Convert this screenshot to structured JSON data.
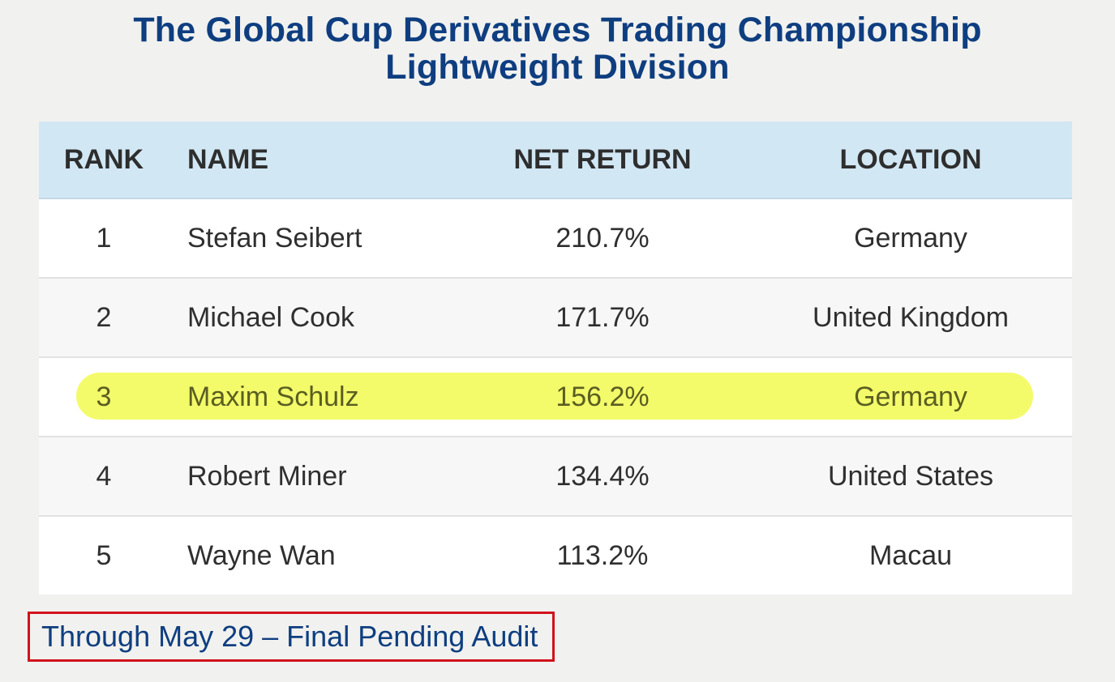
{
  "title": {
    "line1": "The Global Cup Derivatives Trading Championship",
    "line2": "Lightweight Division"
  },
  "table": {
    "headers": {
      "rank": "RANK",
      "name": "NAME",
      "net_return": "NET RETURN",
      "location": "LOCATION"
    },
    "rows": [
      {
        "rank": "1",
        "name": "Stefan Seibert",
        "net_return": "210.7%",
        "location": "Germany"
      },
      {
        "rank": "2",
        "name": "Michael Cook",
        "net_return": "171.7%",
        "location": "United Kingdom"
      },
      {
        "rank": "3",
        "name": "Maxim Schulz",
        "net_return": "156.2%",
        "location": "Germany",
        "highlighted": true
      },
      {
        "rank": "4",
        "name": "Robert Miner",
        "net_return": "134.4%",
        "location": "United States"
      },
      {
        "rank": "5",
        "name": "Wayne Wan",
        "net_return": "113.2%",
        "location": "Macau"
      }
    ]
  },
  "footnote": "Through May 29 – Final Pending Audit",
  "colors": {
    "title": "#0e3e80",
    "header_bg": "#d2e7f4",
    "highlight": "#f4fb6a",
    "footnote_border": "#d0121b"
  }
}
